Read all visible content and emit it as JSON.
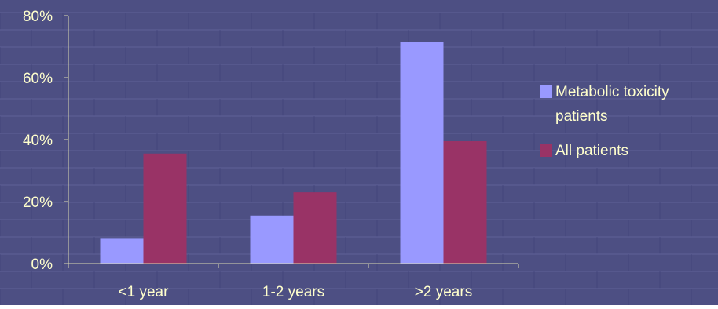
{
  "colors": {
    "background": "#4d4f83",
    "tile_line_light": "#5d5f94",
    "tile_line_dark": "#43457a",
    "text": "#ffffcc",
    "axis": "#d9d9b0"
  },
  "chart_data": {
    "type": "bar",
    "categories": [
      "<1 year",
      "1-2 years",
      ">2 years"
    ],
    "series": [
      {
        "name": "Metabolic toxicity patients",
        "color": "#9999ff",
        "values": [
          8,
          15.5,
          71.5
        ]
      },
      {
        "name": "All patients",
        "color": "#993366",
        "values": [
          35.5,
          23,
          39.5
        ]
      }
    ],
    "ylim": [
      0,
      80
    ],
    "yticks": [
      0,
      20,
      40,
      60,
      80
    ],
    "ytick_labels": [
      "0%",
      "20%",
      "40%",
      "60%",
      "80%"
    ],
    "title": "",
    "xlabel": "",
    "ylabel": "",
    "grid": false,
    "legend_position": "right",
    "legend_labels": [
      [
        "Metabolic toxicity",
        "patients"
      ],
      [
        "All patients"
      ]
    ]
  }
}
